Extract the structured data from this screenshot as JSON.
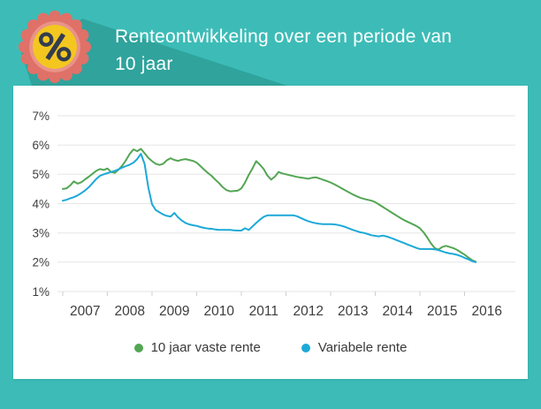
{
  "header": {
    "title_line1": "Renteontwikkeling over een periode van",
    "title_line2": "10 jaar",
    "icon": "percent-badge-icon",
    "background_color": "#3dbcb7",
    "shadow_color": "#2fa39c",
    "badge_colors": {
      "outer_ring": "#df7168",
      "inner_ring": "#e9938a",
      "center": "#f3c71f",
      "glyph": "#333c4f"
    }
  },
  "chart_data": {
    "type": "line",
    "title": "",
    "xlabel": "",
    "ylabel": "",
    "ylim": [
      1,
      7
    ],
    "grid": true,
    "grid_color": "#e6e6e6",
    "tick_color": "#cfcfcf",
    "axis_text_color": "#3d3d3d",
    "legend_position": "bottom",
    "y_tick_values": [
      7,
      6,
      5,
      4,
      3,
      2,
      1
    ],
    "y_tick_labels": [
      "7%",
      "6%",
      "5%",
      "4%",
      "3%",
      "2%",
      "1%"
    ],
    "x_tick_labels": [
      "2007",
      "2008",
      "2009",
      "2010",
      "2011",
      "2012",
      "2013",
      "2014",
      "2015",
      "2016"
    ],
    "x_unit": "months starting Jan 2007, ending Apr 2016",
    "series": [
      {
        "name": "10 jaar vaste rente",
        "color": "#53a653",
        "values": [
          4.5,
          4.52,
          4.62,
          4.76,
          4.68,
          4.73,
          4.83,
          4.92,
          5.02,
          5.12,
          5.18,
          5.15,
          5.2,
          5.08,
          5.05,
          5.16,
          5.3,
          5.48,
          5.7,
          5.85,
          5.79,
          5.87,
          5.72,
          5.56,
          5.45,
          5.36,
          5.32,
          5.36,
          5.48,
          5.55,
          5.49,
          5.46,
          5.5,
          5.52,
          5.49,
          5.46,
          5.4,
          5.28,
          5.16,
          5.05,
          4.95,
          4.82,
          4.7,
          4.56,
          4.46,
          4.42,
          4.43,
          4.44,
          4.52,
          4.72,
          4.98,
          5.2,
          5.45,
          5.33,
          5.18,
          4.96,
          4.82,
          4.92,
          5.08,
          5.03,
          5.0,
          4.97,
          4.94,
          4.91,
          4.89,
          4.87,
          4.85,
          4.88,
          4.9,
          4.86,
          4.81,
          4.77,
          4.72,
          4.66,
          4.59,
          4.52,
          4.45,
          4.38,
          4.31,
          4.25,
          4.2,
          4.16,
          4.13,
          4.1,
          4.05,
          3.97,
          3.89,
          3.81,
          3.73,
          3.65,
          3.57,
          3.49,
          3.42,
          3.36,
          3.3,
          3.24,
          3.16,
          3.02,
          2.84,
          2.64,
          2.48,
          2.43,
          2.52,
          2.56,
          2.52,
          2.48,
          2.42,
          2.34,
          2.26,
          2.16,
          2.07,
          2.02
        ]
      },
      {
        "name": "Variabele rente",
        "color": "#1ca9d8",
        "values": [
          4.1,
          4.13,
          4.18,
          4.22,
          4.28,
          4.36,
          4.45,
          4.56,
          4.7,
          4.84,
          4.95,
          5.0,
          5.04,
          5.08,
          5.12,
          5.17,
          5.23,
          5.28,
          5.33,
          5.4,
          5.52,
          5.7,
          5.35,
          4.55,
          3.98,
          3.78,
          3.7,
          3.63,
          3.58,
          3.56,
          3.68,
          3.53,
          3.42,
          3.34,
          3.29,
          3.26,
          3.24,
          3.2,
          3.17,
          3.15,
          3.14,
          3.12,
          3.1,
          3.1,
          3.1,
          3.1,
          3.09,
          3.08,
          3.08,
          3.16,
          3.1,
          3.22,
          3.34,
          3.45,
          3.55,
          3.6,
          3.6,
          3.6,
          3.6,
          3.6,
          3.6,
          3.6,
          3.6,
          3.57,
          3.51,
          3.45,
          3.4,
          3.36,
          3.33,
          3.31,
          3.3,
          3.3,
          3.3,
          3.29,
          3.27,
          3.24,
          3.2,
          3.15,
          3.1,
          3.06,
          3.02,
          3.0,
          2.96,
          2.92,
          2.9,
          2.88,
          2.91,
          2.88,
          2.84,
          2.79,
          2.74,
          2.69,
          2.64,
          2.59,
          2.54,
          2.49,
          2.45,
          2.45,
          2.45,
          2.45,
          2.44,
          2.41,
          2.37,
          2.33,
          2.3,
          2.28,
          2.25,
          2.21,
          2.15,
          2.1,
          2.04,
          2.0
        ]
      }
    ]
  }
}
